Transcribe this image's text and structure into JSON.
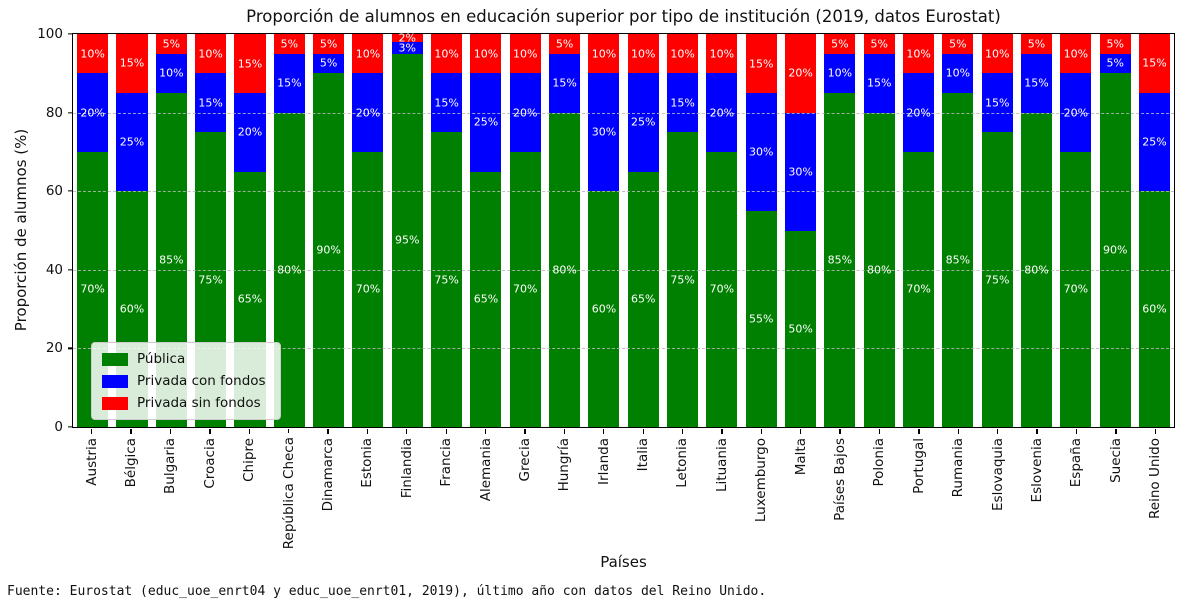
{
  "figure": {
    "footer": "Fuente: Eurostat (educ_uoe_enrt04 y educ_uoe_enrt01, 2019), último año con datos del Reino Unido."
  },
  "chart_data": {
    "type": "bar",
    "stacked": true,
    "title": "Proporción de alumnos en educación superior por tipo de institución (2019, datos Eurostat)",
    "xlabel": "Países",
    "ylabel": "Proporción de alumnos (%)",
    "ylim": [
      0,
      100
    ],
    "yticks": [
      0,
      20,
      40,
      60,
      80,
      100
    ],
    "grid": "horizontal dashed gridlines at yticks, drawn over bars",
    "legend_position": "lower left inside plot",
    "bar_label_format": "value + % centered in each segment, white text",
    "categories": [
      "Austria",
      "Bélgica",
      "Bulgaria",
      "Croacia",
      "Chipre",
      "República Checa",
      "Dinamarca",
      "Estonia",
      "Finlandia",
      "Francia",
      "Alemania",
      "Grecia",
      "Hungría",
      "Irlanda",
      "Italia",
      "Letonia",
      "Lituania",
      "Luxemburgo",
      "Malta",
      "Países Bajos",
      "Polonia",
      "Portugal",
      "Rumania",
      "Eslovaquia",
      "Eslovenia",
      "España",
      "Suecia",
      "Reino Unido"
    ],
    "series": [
      {
        "name": "Pública",
        "color": "#008000",
        "values": [
          70,
          60,
          85,
          75,
          65,
          80,
          90,
          70,
          95,
          75,
          65,
          70,
          80,
          60,
          65,
          75,
          70,
          55,
          50,
          85,
          80,
          70,
          85,
          75,
          80,
          70,
          90,
          60
        ]
      },
      {
        "name": "Privada con fondos",
        "color": "#0000ff",
        "values": [
          20,
          25,
          10,
          15,
          20,
          15,
          5,
          20,
          3,
          15,
          25,
          20,
          15,
          30,
          25,
          15,
          20,
          30,
          30,
          10,
          15,
          20,
          10,
          15,
          15,
          20,
          5,
          25
        ]
      },
      {
        "name": "Privada sin fondos",
        "color": "#ff0000",
        "values": [
          10,
          15,
          5,
          10,
          15,
          5,
          5,
          10,
          2,
          10,
          10,
          10,
          5,
          10,
          10,
          10,
          10,
          15,
          20,
          5,
          5,
          10,
          5,
          10,
          5,
          10,
          5,
          15
        ]
      }
    ]
  }
}
